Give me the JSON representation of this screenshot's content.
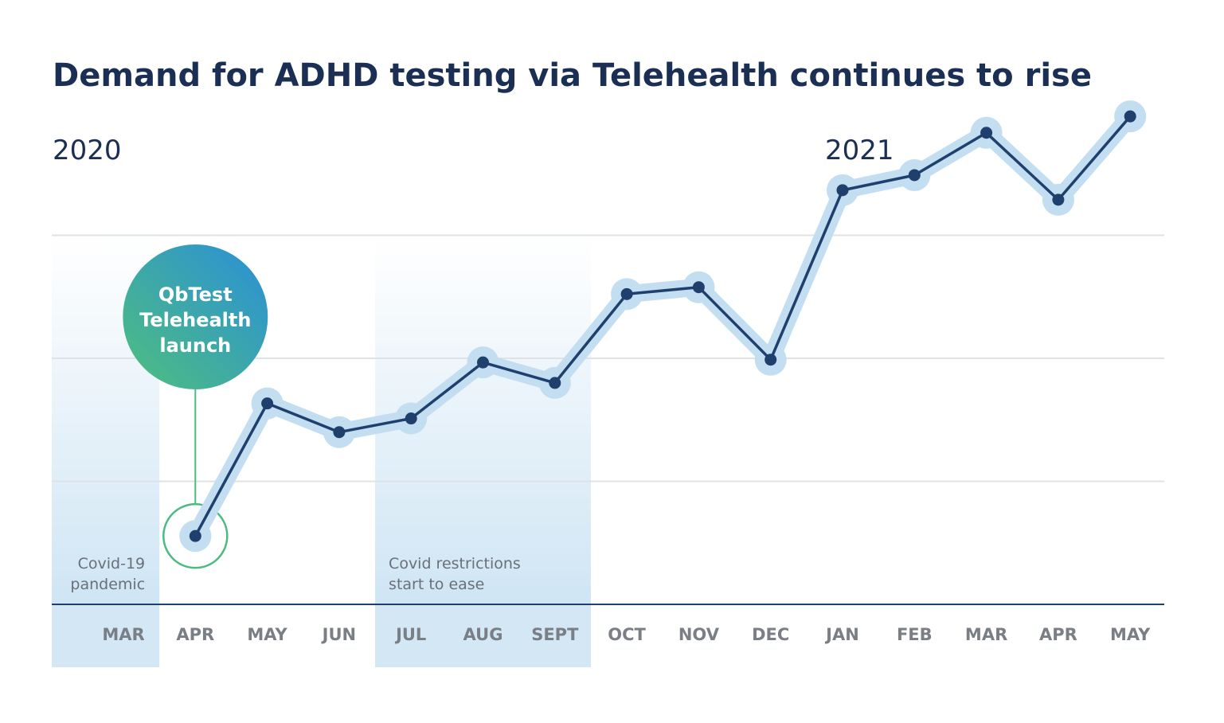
{
  "chart_data": {
    "type": "line",
    "title": "Demand for ADHD testing via Telehealth continues to rise",
    "year_labels": [
      "2020",
      "2021"
    ],
    "categories": [
      "MAR",
      "APR",
      "MAY",
      "JUN",
      "JUL",
      "AUG",
      "SEPT",
      "OCT",
      "NOV",
      "DEC",
      "JAN",
      "FEB",
      "MAR",
      "APR",
      "MAY"
    ],
    "series": [
      {
        "values": [
          null,
          0.5,
          1.47,
          1.26,
          1.36,
          1.77,
          1.62,
          2.27,
          2.32,
          1.79,
          3.03,
          3.14,
          3.45,
          2.96,
          3.57
        ]
      }
    ],
    "ylim": [
      0,
      3.6
    ],
    "grid": true,
    "xlabel": "",
    "ylabel": "",
    "shaded_periods": [
      {
        "from": "MAR",
        "to": "MAR",
        "note": [
          "Covid-19",
          "pandemic"
        ]
      },
      {
        "from": "JUL",
        "to": "SEPT",
        "note": [
          "Covid restrictions",
          "start to ease"
        ]
      }
    ],
    "callout": {
      "at": "APR",
      "lines": [
        "QbTest",
        "Telehealth",
        "launch"
      ]
    },
    "colors": {
      "title": "#1b2f55",
      "line": "#1f3f6d",
      "halo": "#c3ddf1",
      "band": "#d3e7f5",
      "callout_top": "#2a93d5",
      "callout_bottom": "#4cbb82",
      "callout_stroke": "#4cbb82",
      "grid": "#dfe2e6",
      "baseline": "#1f3f6d",
      "tick": "#7a7f86"
    }
  }
}
